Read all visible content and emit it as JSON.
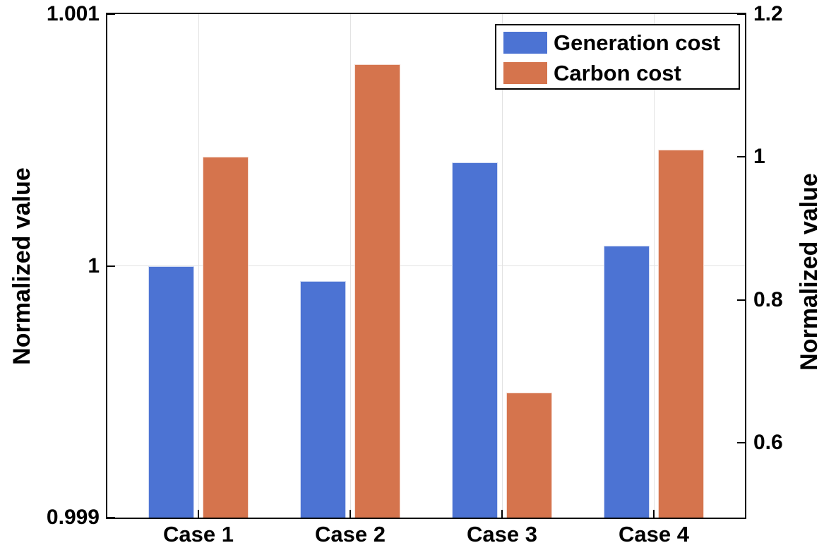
{
  "chart_data": {
    "type": "bar",
    "title": "",
    "categories": [
      "Case 1",
      "Case 2",
      "Case 3",
      "Case 4"
    ],
    "series": [
      {
        "name": "Generation cost",
        "axis": "left",
        "color": "#4C73D3",
        "values": [
          1.0,
          0.99994,
          1.00041,
          1.00008
        ]
      },
      {
        "name": "Carbon cost",
        "axis": "right",
        "color": "#D5744D",
        "values": [
          1.0,
          1.13,
          0.67,
          1.01
        ]
      }
    ],
    "left_axis": {
      "label": "Normalized value",
      "ylim": [
        0.999,
        1.001
      ],
      "ticks": [
        {
          "value": 1.001,
          "label": "1.001"
        },
        {
          "value": 1.0,
          "label": "1"
        },
        {
          "value": 0.999,
          "label": "0.999"
        }
      ]
    },
    "right_axis": {
      "label": "Normalized value",
      "ylim": [
        0.495,
        1.2
      ],
      "ticks": [
        {
          "value": 1.2,
          "label": "1.2"
        },
        {
          "value": 1.0,
          "label": "1"
        },
        {
          "value": 0.8,
          "label": "0.8"
        },
        {
          "value": 0.6,
          "label": "0.6"
        }
      ]
    },
    "legend": {
      "position": "top-right",
      "entries": [
        "Generation cost",
        "Carbon cost"
      ]
    },
    "grid": {
      "color": "#E2E2E2",
      "horizontal": "left-axis interior ticks",
      "vertical": "category centers"
    },
    "axis_color": "#000000",
    "text_color": "#000000",
    "xlabel": ""
  }
}
